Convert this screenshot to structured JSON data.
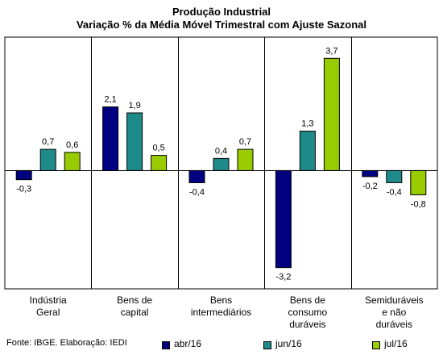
{
  "chart_data": {
    "type": "bar",
    "title": "Produção Industrial",
    "subtitle": "Variação % da Média Móvel Trimestral com Ajuste Sazonal",
    "categories": [
      "Indústria\nGeral",
      "Bens de\ncapital",
      "Bens\nintermediários",
      "Bens de\nconsumo\nduráveis",
      "Semiduráveis\ne não\nduráveis"
    ],
    "series": [
      {
        "name": "abr/16",
        "color": "#000080",
        "values": [
          -0.3,
          2.1,
          -0.4,
          -3.2,
          -0.2
        ]
      },
      {
        "name": "jun/16",
        "color": "#1f8a8a",
        "values": [
          0.7,
          1.9,
          0.4,
          1.3,
          -0.4
        ]
      },
      {
        "name": "jul/16",
        "color": "#99cc00",
        "values": [
          0.6,
          0.5,
          0.7,
          3.7,
          -0.8
        ]
      }
    ],
    "value_labels": [
      [
        "-0,3",
        "2,1",
        "-0,4",
        "-3,2",
        "-0,2"
      ],
      [
        "0,7",
        "1,9",
        "0,4",
        "1,3",
        "-0,4"
      ],
      [
        "0,6",
        "0,5",
        "0,7",
        "3,7",
        "-0,8"
      ]
    ],
    "ylim": [
      -3.9,
      4.4
    ],
    "grid": false,
    "legend_position": "bottom-right"
  },
  "footer": {
    "source": "Fonte: IBGE. Elaboração: IEDI"
  }
}
